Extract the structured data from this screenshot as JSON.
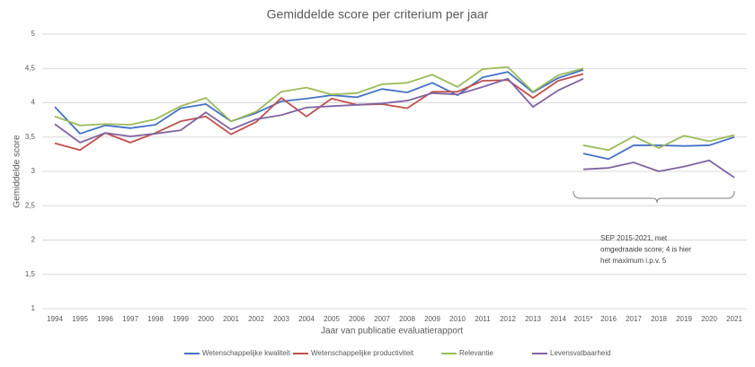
{
  "chart_data": {
    "type": "line",
    "title": "Gemiddelde score per criterium per jaar",
    "xlabel": "Jaar van publicatie evaluatierapport",
    "ylabel": "Gemiddelde score",
    "categories": [
      "1994",
      "1995",
      "1996",
      "1997",
      "1998",
      "1999",
      "2000",
      "2001",
      "2002",
      "2003",
      "2004",
      "2005",
      "2006",
      "2007",
      "2008",
      "2009",
      "2010",
      "2011",
      "2012",
      "2013",
      "2014",
      "2015*",
      "2016",
      "2017",
      "2018",
      "2019",
      "2020",
      "2021"
    ],
    "ylim": [
      1,
      5
    ],
    "yticks": [
      1,
      {
        "value": 1.5,
        "label": "1,5"
      },
      2,
      {
        "value": 2.5,
        "label": "2,5"
      },
      3,
      {
        "value": 3.5,
        "label": "3,5"
      },
      4,
      {
        "value": 4.5,
        "label": "4,5"
      },
      5
    ],
    "grid": true,
    "legend": "bottom",
    "annotation": [
      "SEP 2015-2021, met",
      "omgedraaide score; 4 is hier",
      "het maximum i.p.v. 5"
    ],
    "series": [
      {
        "name": "Wetenschappelijke kwaliteit",
        "color": "#4472c4",
        "values": [
          3.94,
          3.55,
          3.67,
          3.63,
          3.68,
          3.92,
          3.98,
          3.73,
          3.85,
          4.02,
          4.06,
          4.11,
          4.08,
          4.2,
          4.15,
          4.29,
          4.11,
          4.37,
          4.45,
          4.15,
          4.36,
          4.48,
          null,
          null,
          null,
          null,
          null,
          null
        ],
        "sep_values": [
          null,
          null,
          null,
          null,
          null,
          null,
          null,
          null,
          null,
          null,
          null,
          null,
          null,
          null,
          null,
          null,
          null,
          null,
          null,
          null,
          null,
          3.26,
          3.18,
          3.38,
          3.38,
          3.37,
          3.38,
          3.5
        ]
      },
      {
        "name": "Wetenschappelijke productiviteit",
        "color": "#c0504d",
        "values": [
          3.41,
          3.31,
          3.56,
          3.42,
          3.56,
          3.73,
          3.8,
          3.54,
          3.72,
          4.07,
          3.8,
          4.06,
          3.97,
          3.98,
          3.92,
          4.16,
          4.16,
          4.32,
          4.33,
          4.07,
          4.32,
          4.42,
          null,
          null,
          null,
          null,
          null,
          null
        ],
        "sep_values": [
          null,
          null,
          null,
          null,
          null,
          null,
          null,
          null,
          null,
          null,
          null,
          null,
          null,
          null,
          null,
          null,
          null,
          null,
          null,
          null,
          null,
          null,
          null,
          null,
          null,
          null,
          null,
          null
        ]
      },
      {
        "name": "Relevantie",
        "color": "#9bbb59",
        "values": [
          3.8,
          3.67,
          3.69,
          3.68,
          3.76,
          3.95,
          4.07,
          3.73,
          3.87,
          4.16,
          4.22,
          4.12,
          4.14,
          4.27,
          4.29,
          4.41,
          4.23,
          4.49,
          4.52,
          4.16,
          4.4,
          4.5,
          null,
          null,
          null,
          null,
          null,
          null
        ],
        "sep_values": [
          null,
          null,
          null,
          null,
          null,
          null,
          null,
          null,
          null,
          null,
          null,
          null,
          null,
          null,
          null,
          null,
          null,
          null,
          null,
          null,
          null,
          3.38,
          3.31,
          3.51,
          3.34,
          3.52,
          3.44,
          3.53
        ]
      },
      {
        "name": "Levensvatbaarheid",
        "color": "#8064a2",
        "values": [
          3.69,
          3.42,
          3.56,
          3.51,
          3.55,
          3.6,
          3.86,
          3.61,
          3.76,
          3.82,
          3.93,
          3.95,
          3.97,
          3.99,
          4.03,
          4.14,
          4.12,
          4.23,
          4.35,
          3.94,
          4.18,
          4.35,
          null,
          null,
          null,
          null,
          null,
          null
        ],
        "sep_values": [
          null,
          null,
          null,
          null,
          null,
          null,
          null,
          null,
          null,
          null,
          null,
          null,
          null,
          null,
          null,
          null,
          null,
          null,
          null,
          null,
          null,
          3.03,
          3.05,
          3.13,
          3.0,
          3.07,
          3.16,
          2.91
        ]
      }
    ]
  }
}
